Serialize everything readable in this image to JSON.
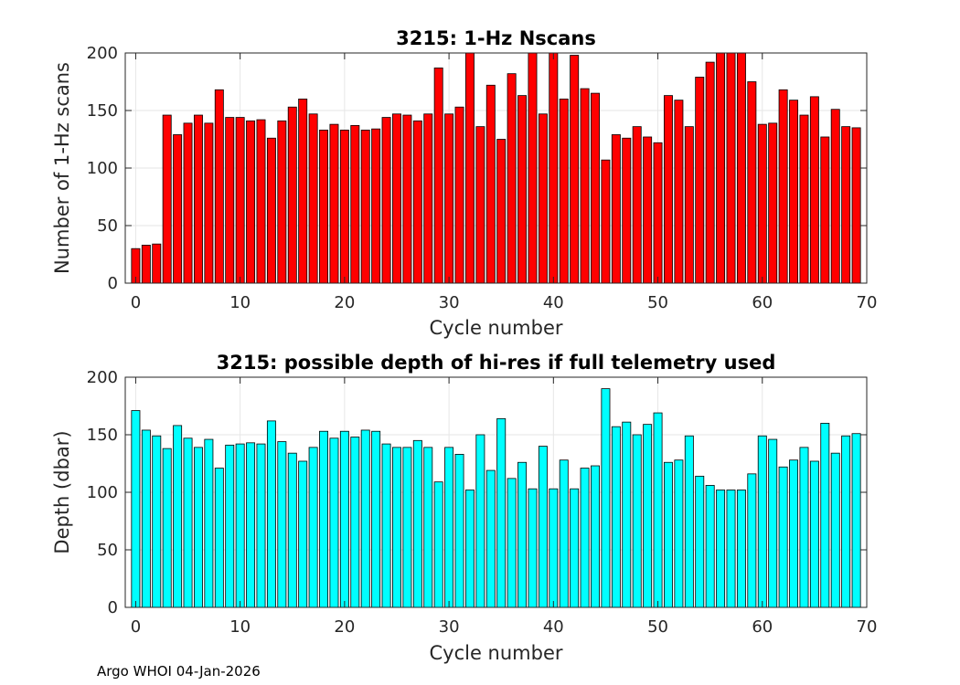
{
  "chart_data": [
    {
      "type": "bar",
      "title": "3215: 1-Hz Nscans",
      "xlabel": "Cycle number",
      "ylabel": "Number of 1-Hz scans",
      "xlim": [
        -1,
        70
      ],
      "ylim": [
        0,
        200
      ],
      "xticks": [
        0,
        10,
        20,
        30,
        40,
        50,
        60,
        70
      ],
      "yticks": [
        0,
        50,
        100,
        150,
        200
      ],
      "grid": true,
      "bar_color": "#ff0000",
      "x": [
        0,
        1,
        2,
        3,
        4,
        5,
        6,
        7,
        8,
        9,
        10,
        11,
        12,
        13,
        14,
        15,
        16,
        17,
        18,
        19,
        20,
        21,
        22,
        23,
        24,
        25,
        26,
        27,
        28,
        29,
        30,
        31,
        32,
        33,
        34,
        35,
        36,
        37,
        38,
        39,
        40,
        41,
        42,
        43,
        44,
        45,
        46,
        47,
        48,
        49,
        50,
        51,
        52,
        53,
        54,
        55,
        56,
        57,
        58,
        59,
        60,
        61,
        62,
        63,
        64,
        65,
        66,
        67,
        68,
        69
      ],
      "values": [
        30,
        33,
        34,
        146,
        129,
        139,
        146,
        139,
        168,
        144,
        144,
        141,
        142,
        126,
        141,
        153,
        160,
        147,
        133,
        138,
        133,
        137,
        133,
        134,
        144,
        147,
        146,
        141,
        147,
        187,
        147,
        153,
        200,
        136,
        172,
        125,
        182,
        163,
        200,
        147,
        200,
        160,
        198,
        169,
        165,
        107,
        129,
        126,
        136,
        127,
        122,
        163,
        159,
        136,
        179,
        192,
        200,
        200,
        200,
        175,
        138,
        139,
        168,
        159,
        146,
        162,
        127,
        151,
        136,
        135
      ]
    },
    {
      "type": "bar",
      "title": "3215: possible depth of hi-res if full telemetry used",
      "xlabel": "Cycle number",
      "ylabel": "Depth (dbar)",
      "xlim": [
        -1,
        70
      ],
      "ylim": [
        0,
        200
      ],
      "xticks": [
        0,
        10,
        20,
        30,
        40,
        50,
        60,
        70
      ],
      "yticks": [
        0,
        50,
        100,
        150,
        200
      ],
      "grid": true,
      "bar_color": "#00ffff",
      "x": [
        0,
        1,
        2,
        3,
        4,
        5,
        6,
        7,
        8,
        9,
        10,
        11,
        12,
        13,
        14,
        15,
        16,
        17,
        18,
        19,
        20,
        21,
        22,
        23,
        24,
        25,
        26,
        27,
        28,
        29,
        30,
        31,
        32,
        33,
        34,
        35,
        36,
        37,
        38,
        39,
        40,
        41,
        42,
        43,
        44,
        45,
        46,
        47,
        48,
        49,
        50,
        51,
        52,
        53,
        54,
        55,
        56,
        57,
        58,
        59,
        60,
        61,
        62,
        63,
        64,
        65,
        66,
        67,
        68,
        69
      ],
      "values": [
        171,
        154,
        149,
        138,
        158,
        147,
        139,
        146,
        121,
        141,
        142,
        143,
        142,
        162,
        144,
        134,
        127,
        139,
        153,
        147,
        153,
        148,
        154,
        153,
        142,
        139,
        139,
        145,
        139,
        109,
        139,
        133,
        102,
        150,
        119,
        164,
        112,
        126,
        103,
        140,
        103,
        128,
        103,
        121,
        123,
        190,
        157,
        161,
        150,
        159,
        169,
        126,
        128,
        149,
        114,
        106,
        102,
        102,
        102,
        116,
        149,
        146,
        122,
        128,
        139,
        127,
        160,
        134,
        149,
        151
      ]
    }
  ],
  "footer": "Argo WHOI 04-Jan-2026"
}
